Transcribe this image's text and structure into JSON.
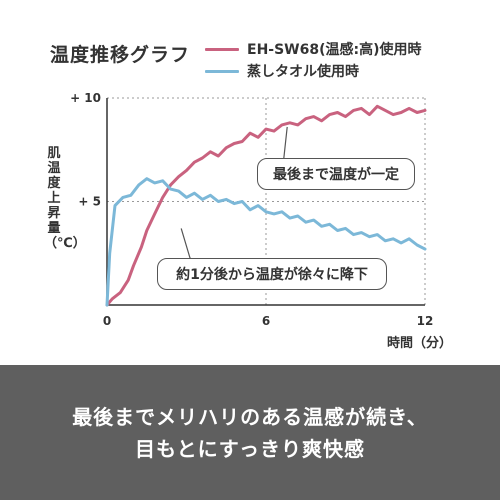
{
  "chart_data": {
    "type": "line",
    "title": "温度推移グラフ",
    "xlabel": "時間（分）",
    "ylabel": "肌温度上昇量（℃）",
    "xlim": [
      0,
      12
    ],
    "ylim": [
      0,
      10
    ],
    "x_ticks": [
      {
        "value": 0,
        "label": "0"
      },
      {
        "value": 6,
        "label": "6"
      },
      {
        "value": 12,
        "label": "12"
      }
    ],
    "y_ticks": [
      {
        "value": 5,
        "label": "+ 5"
      },
      {
        "value": 10,
        "label": "+ 10"
      }
    ],
    "grid": "dashed",
    "legend_placement": "top-right",
    "series": [
      {
        "name": "EH-SW68(温感:高)使用時",
        "color": "#c9627f",
        "points": [
          [
            0,
            0
          ],
          [
            0.2,
            0.3
          ],
          [
            0.5,
            0.6
          ],
          [
            0.8,
            1.2
          ],
          [
            1.0,
            1.9
          ],
          [
            1.3,
            2.8
          ],
          [
            1.5,
            3.6
          ],
          [
            1.8,
            4.4
          ],
          [
            2.1,
            5.2
          ],
          [
            2.4,
            5.8
          ],
          [
            2.7,
            6.2
          ],
          [
            3.0,
            6.5
          ],
          [
            3.3,
            6.9
          ],
          [
            3.6,
            7.1
          ],
          [
            3.9,
            7.4
          ],
          [
            4.2,
            7.2
          ],
          [
            4.5,
            7.6
          ],
          [
            4.8,
            7.8
          ],
          [
            5.1,
            7.9
          ],
          [
            5.4,
            8.3
          ],
          [
            5.7,
            8.1
          ],
          [
            6.0,
            8.5
          ],
          [
            6.3,
            8.4
          ],
          [
            6.6,
            8.7
          ],
          [
            6.9,
            8.8
          ],
          [
            7.2,
            8.7
          ],
          [
            7.5,
            9.0
          ],
          [
            7.8,
            9.1
          ],
          [
            8.1,
            8.9
          ],
          [
            8.4,
            9.2
          ],
          [
            8.7,
            9.3
          ],
          [
            9.0,
            9.1
          ],
          [
            9.3,
            9.4
          ],
          [
            9.6,
            9.5
          ],
          [
            9.9,
            9.2
          ],
          [
            10.2,
            9.6
          ],
          [
            10.5,
            9.4
          ],
          [
            10.8,
            9.2
          ],
          [
            11.1,
            9.3
          ],
          [
            11.4,
            9.5
          ],
          [
            11.7,
            9.3
          ],
          [
            12.0,
            9.4
          ]
        ]
      },
      {
        "name": "蒸しタオル使用時",
        "color": "#7cb8d8",
        "points": [
          [
            0,
            0
          ],
          [
            0.1,
            2.5
          ],
          [
            0.3,
            4.8
          ],
          [
            0.6,
            5.2
          ],
          [
            0.9,
            5.3
          ],
          [
            1.2,
            5.8
          ],
          [
            1.5,
            6.1
          ],
          [
            1.8,
            5.9
          ],
          [
            2.1,
            6.0
          ],
          [
            2.4,
            5.6
          ],
          [
            2.7,
            5.5
          ],
          [
            3.0,
            5.2
          ],
          [
            3.3,
            5.4
          ],
          [
            3.6,
            5.1
          ],
          [
            3.9,
            5.3
          ],
          [
            4.2,
            5.0
          ],
          [
            4.5,
            5.1
          ],
          [
            4.8,
            4.9
          ],
          [
            5.1,
            5.0
          ],
          [
            5.4,
            4.6
          ],
          [
            5.7,
            4.8
          ],
          [
            6.0,
            4.5
          ],
          [
            6.3,
            4.4
          ],
          [
            6.6,
            4.5
          ],
          [
            6.9,
            4.2
          ],
          [
            7.2,
            4.3
          ],
          [
            7.5,
            4.0
          ],
          [
            7.8,
            4.1
          ],
          [
            8.1,
            3.8
          ],
          [
            8.4,
            3.9
          ],
          [
            8.7,
            3.6
          ],
          [
            9.0,
            3.7
          ],
          [
            9.3,
            3.4
          ],
          [
            9.6,
            3.5
          ],
          [
            9.9,
            3.3
          ],
          [
            10.2,
            3.4
          ],
          [
            10.5,
            3.1
          ],
          [
            10.8,
            3.2
          ],
          [
            11.1,
            3.0
          ],
          [
            11.4,
            3.2
          ],
          [
            11.7,
            2.9
          ],
          [
            12.0,
            2.7
          ]
        ]
      }
    ],
    "annotations": [
      {
        "text": "最後まで温度が一定",
        "series": 0,
        "point_at": [
          6.8,
          8.6
        ]
      },
      {
        "text": "約1分後から温度が徐々に降下",
        "series": 1,
        "point_at": [
          2.8,
          3.7
        ]
      }
    ]
  },
  "footer": {
    "line1": "最後までメリハリのある温感が続き、",
    "line2": "目もとにすっきり爽快感"
  }
}
